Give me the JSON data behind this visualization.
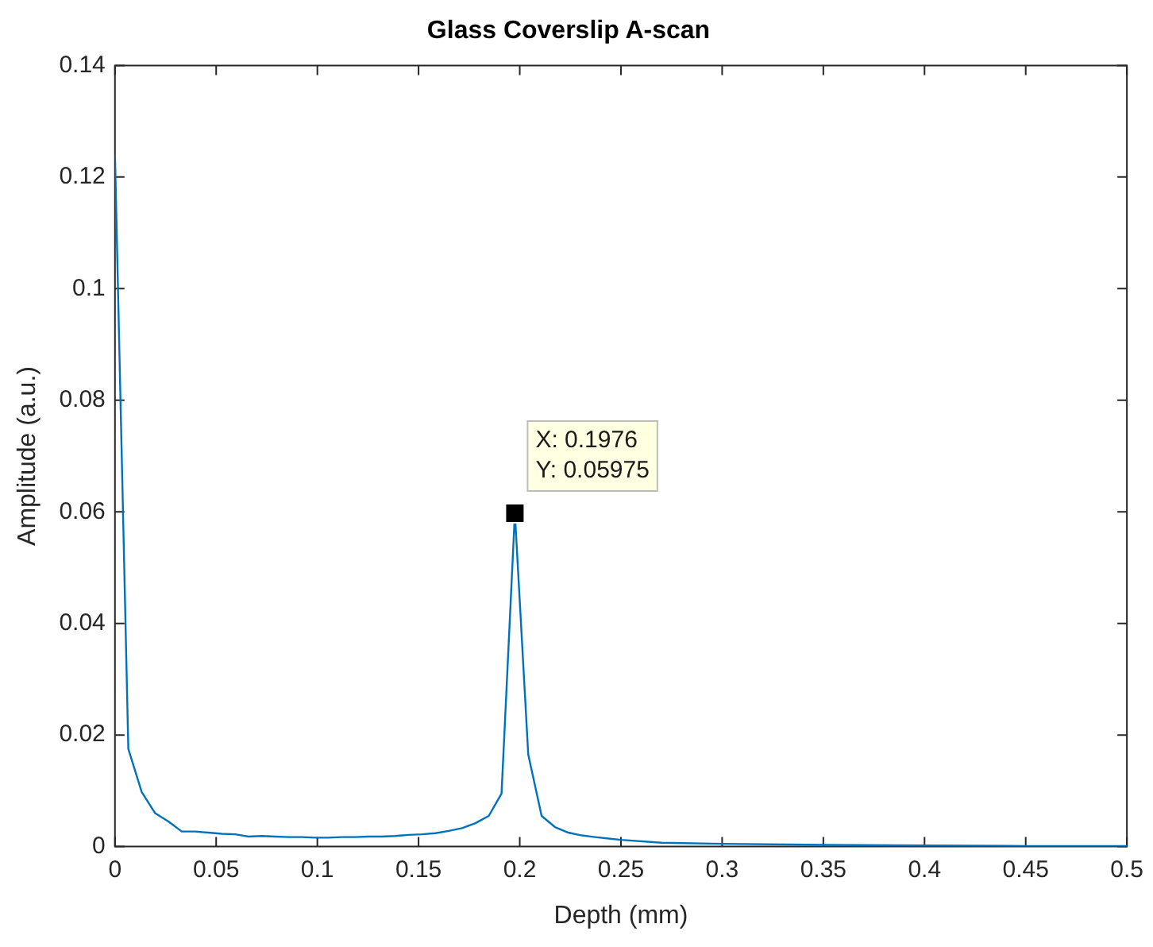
{
  "chart_data": {
    "type": "line",
    "title": "Glass Coverslip A-scan",
    "xlabel": "Depth (mm)",
    "ylabel": "Amplitude (a.u.)",
    "x": [
      0,
      0.0066,
      0.0132,
      0.0198,
      0.0264,
      0.033,
      0.0396,
      0.0462,
      0.0528,
      0.0594,
      0.066,
      0.0725,
      0.0791,
      0.0857,
      0.0923,
      0.0989,
      0.1055,
      0.1121,
      0.1187,
      0.1253,
      0.1319,
      0.1385,
      0.1451,
      0.1517,
      0.1583,
      0.1649,
      0.1715,
      0.1781,
      0.1847,
      0.191,
      0.1976,
      0.2042,
      0.2108,
      0.2174,
      0.224,
      0.2306,
      0.2372,
      0.25,
      0.27,
      0.3,
      0.35,
      0.4,
      0.45,
      0.5
    ],
    "series": [
      {
        "color": "#0072bd",
        "values": [
          0.124,
          0.0175,
          0.0098,
          0.006,
          0.0045,
          0.0027,
          0.0027,
          0.0025,
          0.0023,
          0.0022,
          0.0018,
          0.0019,
          0.0018,
          0.0017,
          0.0017,
          0.0016,
          0.0016,
          0.0017,
          0.0017,
          0.0018,
          0.0018,
          0.0019,
          0.0021,
          0.0022,
          0.0024,
          0.0028,
          0.0033,
          0.0042,
          0.0055,
          0.0095,
          0.05975,
          0.0165,
          0.0055,
          0.0035,
          0.0025,
          0.002,
          0.0017,
          0.0012,
          0.0007,
          0.0005,
          0.0003,
          0.0002,
          0.0001,
          0.0001
        ]
      }
    ],
    "xlim": [
      0,
      0.5
    ],
    "xticks": [
      0,
      0.05,
      0.1,
      0.15,
      0.2,
      0.25,
      0.3,
      0.35,
      0.4,
      0.45,
      0.5
    ],
    "ylim": [
      0,
      0.14
    ],
    "yticks": [
      0,
      0.02,
      0.04,
      0.06,
      0.08,
      0.1,
      0.12,
      0.14
    ],
    "annotations": [
      {
        "text": "X: 0.1976\nY: 0.05975",
        "x": 0.1976,
        "y": 0.05975
      }
    ]
  }
}
